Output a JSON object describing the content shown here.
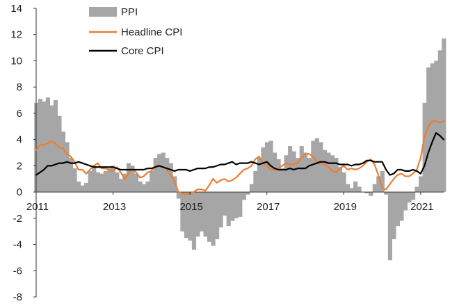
{
  "chart_data": {
    "type": "line",
    "title": "",
    "xlabel": "",
    "ylabel": "",
    "xlim": [
      2011.0,
      2021.6
    ],
    "ylim": [
      -8,
      14
    ],
    "y_ticks": [
      14,
      12,
      10,
      8,
      6,
      4,
      2,
      0,
      -2,
      -4,
      -6,
      -8
    ],
    "x_ticks": [
      2011,
      2013,
      2015,
      2017,
      2019,
      2021
    ],
    "x_tick_labels": [
      "2011",
      "2013",
      "2015",
      "2017",
      "2019",
      "2021"
    ],
    "y_tick_labels": [
      "14",
      "12",
      "10",
      "8",
      "6",
      "4",
      "2",
      "0",
      "-2",
      "-4",
      "-6",
      "-8"
    ],
    "legend": {
      "placement": "top-left",
      "entries": [
        "PPI",
        "Headline CPI",
        "Core CPI"
      ]
    },
    "colors": {
      "ppi": "#a6a6a6",
      "headline": "#ed7d31",
      "core": "#000000",
      "axis": "#333333"
    },
    "grid": false,
    "series": [
      {
        "name": "PPI",
        "style": "area",
        "x": [
          2011.0,
          2011.1,
          2011.2,
          2011.3,
          2011.4,
          2011.5,
          2011.6,
          2011.7,
          2011.8,
          2011.9,
          2012.0,
          2012.1,
          2012.2,
          2012.3,
          2012.4,
          2012.5,
          2012.6,
          2012.7,
          2012.8,
          2012.9,
          2013.0,
          2013.1,
          2013.2,
          2013.3,
          2013.4,
          2013.5,
          2013.6,
          2013.7,
          2013.8,
          2013.9,
          2014.0,
          2014.1,
          2014.2,
          2014.3,
          2014.4,
          2014.5,
          2014.6,
          2014.7,
          2014.8,
          2014.9,
          2015.0,
          2015.1,
          2015.2,
          2015.3,
          2015.4,
          2015.5,
          2015.6,
          2015.7,
          2015.8,
          2015.9,
          2016.0,
          2016.1,
          2016.2,
          2016.3,
          2016.4,
          2016.5,
          2016.6,
          2016.7,
          2016.8,
          2016.9,
          2017.0,
          2017.1,
          2017.2,
          2017.3,
          2017.4,
          2017.5,
          2017.6,
          2017.7,
          2017.8,
          2017.9,
          2018.0,
          2018.1,
          2018.2,
          2018.3,
          2018.4,
          2018.5,
          2018.6,
          2018.7,
          2018.8,
          2018.9,
          2019.0,
          2019.1,
          2019.2,
          2019.3,
          2019.4,
          2019.5,
          2019.6,
          2019.7,
          2019.8,
          2019.9,
          2020.0,
          2020.1,
          2020.2,
          2020.3,
          2020.4,
          2020.5,
          2020.6,
          2020.7,
          2020.8,
          2020.9,
          2021.0,
          2021.1,
          2021.2,
          2021.3,
          2021.4,
          2021.5,
          2021.6
        ],
        "values": [
          6.8,
          7.1,
          6.9,
          7.2,
          6.6,
          7.0,
          5.8,
          4.6,
          3.8,
          2.6,
          1.8,
          0.8,
          0.5,
          0.7,
          1.6,
          2.0,
          1.5,
          1.4,
          1.6,
          1.8,
          2.0,
          1.5,
          1.0,
          1.4,
          2.2,
          2.0,
          1.4,
          0.8,
          0.6,
          0.8,
          1.6,
          2.6,
          2.9,
          3.0,
          2.6,
          2.2,
          1.2,
          -0.5,
          -3.0,
          -3.5,
          -3.7,
          -4.4,
          -3.4,
          -3.0,
          -3.4,
          -3.8,
          -4.1,
          -3.6,
          -2.7,
          -1.8,
          -2.6,
          -2.2,
          -2.0,
          -1.9,
          -0.6,
          -0.2,
          0.6,
          1.6,
          2.6,
          3.4,
          3.8,
          3.9,
          3.0,
          2.5,
          1.8,
          2.8,
          3.5,
          3.1,
          2.6,
          3.5,
          3.0,
          2.6,
          3.9,
          4.1,
          3.8,
          3.2,
          3.0,
          2.8,
          2.6,
          1.9,
          1.5,
          0.6,
          0.3,
          0.8,
          0.4,
          0.0,
          -0.1,
          -0.3,
          0.6,
          1.2,
          1.6,
          -0.2,
          -5.2,
          -3.6,
          -2.6,
          -2.2,
          -1.4,
          -0.8,
          -0.6,
          0.4,
          1.2,
          6.8,
          9.5,
          9.8,
          10.0,
          10.8,
          11.7
        ]
      },
      {
        "name": "Headline CPI",
        "style": "line",
        "x": [
          2011.0,
          2011.1,
          2011.2,
          2011.3,
          2011.4,
          2011.5,
          2011.6,
          2011.7,
          2011.8,
          2011.9,
          2012.0,
          2012.1,
          2012.2,
          2012.3,
          2012.4,
          2012.5,
          2012.6,
          2012.7,
          2012.8,
          2012.9,
          2013.0,
          2013.1,
          2013.2,
          2013.3,
          2013.4,
          2013.5,
          2013.6,
          2013.7,
          2013.8,
          2013.9,
          2014.0,
          2014.1,
          2014.2,
          2014.3,
          2014.4,
          2014.5,
          2014.6,
          2014.7,
          2014.8,
          2014.9,
          2015.0,
          2015.1,
          2015.2,
          2015.3,
          2015.4,
          2015.5,
          2015.6,
          2015.7,
          2015.8,
          2015.9,
          2016.0,
          2016.1,
          2016.2,
          2016.3,
          2016.4,
          2016.5,
          2016.6,
          2016.7,
          2016.8,
          2016.9,
          2017.0,
          2017.1,
          2017.2,
          2017.3,
          2017.4,
          2017.5,
          2017.6,
          2017.7,
          2017.8,
          2017.9,
          2018.0,
          2018.1,
          2018.2,
          2018.3,
          2018.4,
          2018.5,
          2018.6,
          2018.7,
          2018.8,
          2018.9,
          2019.0,
          2019.1,
          2019.2,
          2019.3,
          2019.4,
          2019.5,
          2019.6,
          2019.7,
          2019.8,
          2019.9,
          2020.0,
          2020.1,
          2020.2,
          2020.3,
          2020.4,
          2020.5,
          2020.6,
          2020.7,
          2020.8,
          2020.9,
          2021.0,
          2021.1,
          2021.2,
          2021.3,
          2021.4,
          2021.5,
          2021.6
        ],
        "values": [
          3.2,
          3.6,
          3.6,
          3.7,
          3.9,
          3.7,
          3.4,
          3.3,
          2.9,
          2.7,
          2.3,
          1.7,
          1.7,
          1.4,
          1.7,
          2.0,
          2.2,
          1.8,
          1.8,
          1.7,
          1.6,
          1.9,
          1.5,
          1.0,
          1.4,
          1.8,
          1.5,
          1.1,
          1.2,
          1.5,
          1.6,
          2.0,
          2.0,
          1.9,
          1.7,
          1.3,
          0.8,
          0.0,
          -0.1,
          -0.2,
          -0.1,
          0.0,
          0.2,
          0.2,
          0.1,
          0.5,
          1.0,
          0.7,
          0.9,
          1.0,
          0.8,
          0.9,
          1.1,
          1.4,
          1.7,
          1.8,
          2.0,
          2.5,
          2.7,
          2.2,
          2.0,
          1.7,
          1.7,
          1.8,
          2.0,
          2.2,
          2.1,
          2.1,
          2.2,
          2.6,
          2.9,
          2.9,
          2.7,
          2.3,
          2.2,
          2.1,
          1.9,
          1.6,
          1.5,
          1.8,
          2.0,
          1.7,
          1.8,
          1.7,
          1.8,
          2.0,
          2.3,
          2.5,
          2.1,
          1.3,
          0.3,
          0.2,
          0.6,
          1.0,
          1.3,
          1.4,
          1.2,
          1.2,
          1.4,
          1.7,
          2.6,
          4.2,
          5.0,
          5.4,
          5.4,
          5.3,
          5.4
        ]
      },
      {
        "name": "Core CPI",
        "style": "line",
        "x": [
          2011.0,
          2011.1,
          2011.2,
          2011.3,
          2011.4,
          2011.5,
          2011.6,
          2011.7,
          2011.8,
          2011.9,
          2012.0,
          2012.1,
          2012.2,
          2012.3,
          2012.4,
          2012.5,
          2012.6,
          2012.7,
          2012.8,
          2012.9,
          2013.0,
          2013.1,
          2013.2,
          2013.3,
          2013.4,
          2013.5,
          2013.6,
          2013.7,
          2013.8,
          2013.9,
          2014.0,
          2014.1,
          2014.2,
          2014.3,
          2014.4,
          2014.5,
          2014.6,
          2014.7,
          2014.8,
          2014.9,
          2015.0,
          2015.1,
          2015.2,
          2015.3,
          2015.4,
          2015.5,
          2015.6,
          2015.7,
          2015.8,
          2015.9,
          2016.0,
          2016.1,
          2016.2,
          2016.3,
          2016.4,
          2016.5,
          2016.6,
          2016.7,
          2016.8,
          2016.9,
          2017.0,
          2017.1,
          2017.2,
          2017.3,
          2017.4,
          2017.5,
          2017.6,
          2017.7,
          2017.8,
          2017.9,
          2018.0,
          2018.1,
          2018.2,
          2018.3,
          2018.4,
          2018.5,
          2018.6,
          2018.7,
          2018.8,
          2018.9,
          2019.0,
          2019.1,
          2019.2,
          2019.3,
          2019.4,
          2019.5,
          2019.6,
          2019.7,
          2019.8,
          2019.9,
          2020.0,
          2020.1,
          2020.2,
          2020.3,
          2020.4,
          2020.5,
          2020.6,
          2020.7,
          2020.8,
          2020.9,
          2021.0,
          2021.1,
          2021.2,
          2021.3,
          2021.4,
          2021.5,
          2021.6
        ],
        "values": [
          1.3,
          1.5,
          1.7,
          2.0,
          2.0,
          2.1,
          2.2,
          2.2,
          2.3,
          2.2,
          2.2,
          2.3,
          2.2,
          2.1,
          2.0,
          1.9,
          1.9,
          1.9,
          1.9,
          1.9,
          1.9,
          1.8,
          1.7,
          1.7,
          1.7,
          1.7,
          1.7,
          1.7,
          1.7,
          1.8,
          1.8,
          1.9,
          2.0,
          1.9,
          1.8,
          1.7,
          1.6,
          1.7,
          1.7,
          1.7,
          1.6,
          1.7,
          1.8,
          1.8,
          1.8,
          1.9,
          1.9,
          2.0,
          2.1,
          2.1,
          2.2,
          2.3,
          2.1,
          2.2,
          2.2,
          2.2,
          2.3,
          2.2,
          2.1,
          2.2,
          2.3,
          2.0,
          1.8,
          1.7,
          1.7,
          1.7,
          1.8,
          1.7,
          1.8,
          1.8,
          1.8,
          2.0,
          2.1,
          2.2,
          2.3,
          2.3,
          2.2,
          2.2,
          2.2,
          2.1,
          2.1,
          2.1,
          2.0,
          2.1,
          2.1,
          2.2,
          2.4,
          2.4,
          2.3,
          2.3,
          2.3,
          1.7,
          1.3,
          1.4,
          1.7,
          1.7,
          1.6,
          1.6,
          1.7,
          1.6,
          1.4,
          2.0,
          3.0,
          3.8,
          4.5,
          4.3,
          4.0
        ]
      }
    ]
  }
}
